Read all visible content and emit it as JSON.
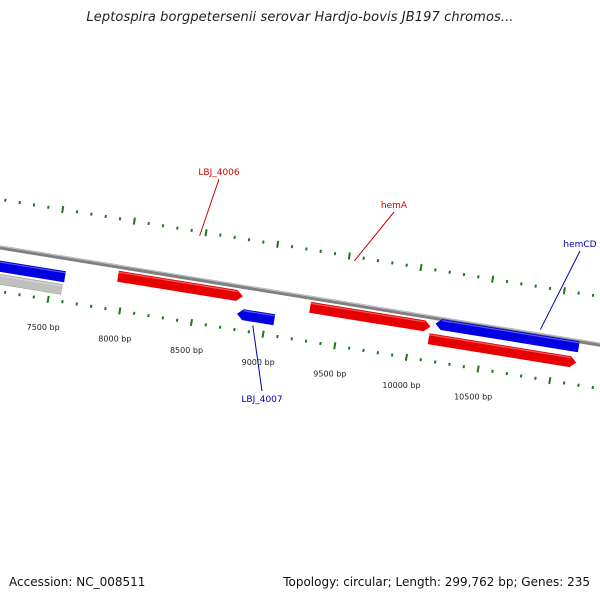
{
  "title": "Leptospira borgpetersenii serovar Hardjo-bovis JB197 chromos...",
  "accession": {
    "label": "Accession:",
    "value": "NC_008511"
  },
  "topology": {
    "label": "Topology:",
    "value": "circular",
    "length_label": "Length:",
    "length_value": "299,762 bp",
    "genes_label": "Genes:",
    "genes_value": "235"
  },
  "colors": {
    "forward_gene": "#e80000",
    "reverse_gene": "#0000e0",
    "other_feature": "#c0c0c0",
    "backbone": "#808080",
    "ticks": "#1a7a1a",
    "forward_label": "#cc0000",
    "reverse_label": "#0000aa",
    "scale_label": "#222222"
  },
  "scale_ticks": [
    {
      "bp": 7500,
      "label": "7500 bp"
    },
    {
      "bp": 8000,
      "label": "8000 bp"
    },
    {
      "bp": 8500,
      "label": "8500 bp"
    },
    {
      "bp": 9000,
      "label": "9000 bp"
    },
    {
      "bp": 9500,
      "label": "9500 bp"
    },
    {
      "bp": 10000,
      "label": "10000 bp"
    },
    {
      "bp": 10500,
      "label": "10500 bp"
    }
  ],
  "features": [
    {
      "name": "",
      "strand": "reverse",
      "type": "gene",
      "start": 6870,
      "end": 7590
    },
    {
      "name": "",
      "strand": "reverse",
      "type": "other",
      "start": 6870,
      "end": 7580
    },
    {
      "name": "LBJ_4006",
      "strand": "forward",
      "type": "gene",
      "start": 7950,
      "end": 8820
    },
    {
      "name": "LBJ_4007",
      "strand": "reverse",
      "type": "gene",
      "start": 8800,
      "end": 9060
    },
    {
      "name": "hemA",
      "strand": "forward",
      "type": "gene",
      "start": 9290,
      "end": 10130
    },
    {
      "name": "",
      "strand": "forward",
      "type": "gene",
      "start": 10130,
      "end": 11160
    },
    {
      "name": "hemCD",
      "strand": "reverse",
      "type": "gene",
      "start": 10160,
      "end": 11160
    }
  ]
}
